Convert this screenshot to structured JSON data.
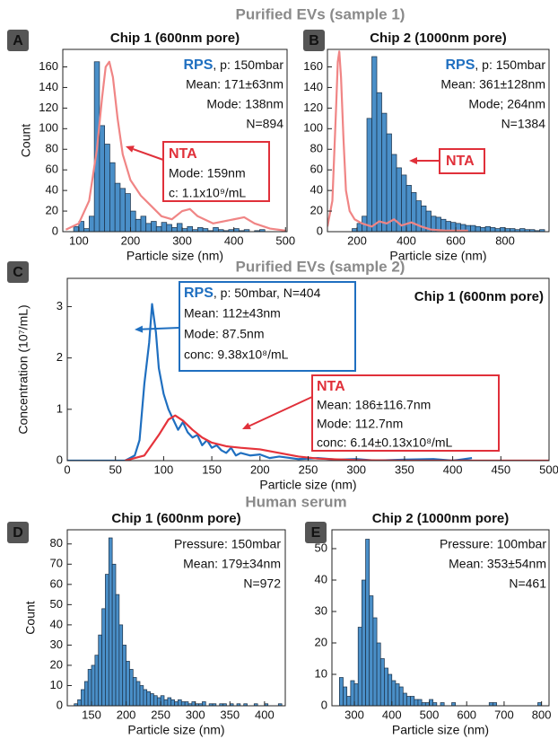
{
  "section_titles": [
    "Purified EVs (sample 1)",
    "Purified EVs (sample 2)",
    "Human serum"
  ],
  "chart_data": [
    {
      "type": "histogram",
      "panel": "A",
      "title": "Chip 1 (600nm pore)",
      "xlabel": "Particle size (nm)",
      "ylabel": "Count",
      "bins": [
        90,
        100,
        110,
        120,
        130,
        140,
        150,
        160,
        170,
        180,
        190,
        200,
        210,
        220,
        230,
        240,
        250,
        260,
        270,
        280,
        290,
        300,
        310,
        320,
        330,
        340,
        350,
        360,
        370,
        380,
        390,
        400,
        410,
        420,
        430,
        440,
        450,
        460
      ],
      "counts": [
        5,
        10,
        3,
        15,
        165,
        103,
        85,
        67,
        47,
        42,
        37,
        20,
        12,
        15,
        8,
        10,
        5,
        9,
        7,
        4,
        8,
        3,
        5,
        2,
        4,
        3,
        1,
        4,
        2,
        1,
        2,
        3,
        1,
        2,
        0,
        1,
        2
      ],
      "color": "#4a8fc8",
      "lines": [
        {
          "name": "NTA",
          "color": "#f08585",
          "x": [
            75,
            100,
            120,
            135,
            145,
            152,
            159,
            166,
            175,
            185,
            200,
            220,
            240,
            260,
            280,
            300,
            315,
            330,
            360,
            400,
            420,
            440,
            470,
            500
          ],
          "values": [
            2,
            8,
            30,
            80,
            130,
            160,
            165,
            150,
            110,
            75,
            50,
            35,
            25,
            15,
            12,
            20,
            22,
            15,
            8,
            12,
            14,
            8,
            3,
            1
          ]
        }
      ],
      "xlim": [
        69,
        503
      ],
      "ylim": [
        0,
        177
      ],
      "xticks": [
        100,
        200,
        300,
        400,
        500
      ],
      "yticks": [
        0,
        20,
        40,
        60,
        80,
        100,
        120,
        140,
        160
      ],
      "annotations": [
        {
          "head": "RPS",
          "head_rest": ", p: 150mbar",
          "color": "#1f6fc0",
          "lines": [
            "Mean: 171±63nm",
            "Mode: 138nm",
            "N=894"
          ]
        },
        {
          "head": "NTA",
          "color": "#e0303a",
          "box": true,
          "lines": [
            "Mode: 159nm",
            "c: 1.1x10⁹/mL"
          ]
        }
      ]
    },
    {
      "type": "histogram",
      "panel": "B",
      "title": "Chip 2 (1000nm pore)",
      "xlabel": "Particle size (nm)",
      "bins": [
        180,
        200,
        220,
        240,
        260,
        280,
        300,
        320,
        340,
        360,
        380,
        400,
        420,
        440,
        460,
        480,
        500,
        520,
        540,
        560,
        580,
        600,
        620,
        640,
        660,
        680,
        700,
        720,
        740,
        760,
        780,
        800,
        820,
        840,
        860,
        880,
        900,
        920,
        940,
        960
      ],
      "counts": [
        3,
        8,
        15,
        110,
        170,
        135,
        115,
        95,
        75,
        62,
        55,
        45,
        38,
        30,
        25,
        20,
        15,
        14,
        12,
        10,
        9,
        8,
        7,
        6,
        6,
        5,
        4,
        5,
        4,
        3,
        4,
        3,
        3,
        2,
        3,
        2,
        2,
        1,
        2
      ],
      "color": "#4a8fc8",
      "lines": [
        {
          "name": "NTA",
          "color": "#f08585",
          "x": [
            80,
            100,
            115,
            122,
            128,
            135,
            145,
            155,
            170,
            190,
            220,
            260,
            290,
            320,
            350,
            380,
            420,
            460,
            500,
            560,
            650
          ],
          "values": [
            5,
            30,
            120,
            165,
            175,
            150,
            90,
            40,
            20,
            12,
            8,
            5,
            10,
            8,
            12,
            6,
            9,
            5,
            2,
            1,
            1
          ]
        }
      ],
      "xlim": [
        80,
        978
      ],
      "ylim": [
        0,
        177
      ],
      "xticks": [
        200,
        400,
        600,
        800
      ],
      "yticks": [
        0,
        20,
        40,
        60,
        80,
        100,
        120,
        140,
        160
      ],
      "annotations": [
        {
          "head": "RPS",
          "head_rest": ", p: 150mbar",
          "color": "#1f6fc0",
          "lines": [
            "Mean: 361±128nm",
            "Mode; 264nm",
            "N=1384"
          ]
        },
        {
          "head": "NTA",
          "color": "#e0303a",
          "box": true,
          "lines": []
        }
      ]
    },
    {
      "type": "line",
      "panel": "C",
      "title": "Chip 1 (600nm pore)",
      "xlabel": "Particle size (nm)",
      "ylabel": "Concentration (10⁷/mL)",
      "series": [
        {
          "name": "RPS",
          "color": "#1f6fc0",
          "x": [
            0,
            20,
            40,
            60,
            70,
            75,
            80,
            85,
            88,
            92,
            95,
            100,
            105,
            110,
            115,
            120,
            125,
            130,
            135,
            140,
            145,
            150,
            155,
            160,
            165,
            170,
            175,
            180,
            190,
            200,
            210,
            220,
            240,
            260,
            280,
            300,
            320,
            350,
            380,
            400,
            420
          ],
          "values": [
            0,
            0,
            0,
            0,
            0.1,
            0.4,
            1.5,
            2.3,
            3.05,
            2.5,
            1.8,
            1.3,
            1.0,
            0.8,
            0.6,
            0.75,
            0.55,
            0.45,
            0.5,
            0.3,
            0.4,
            0.25,
            0.3,
            0.2,
            0.15,
            0.25,
            0.1,
            0.15,
            0.1,
            0.12,
            0.05,
            0.08,
            0.03,
            0.05,
            0.02,
            0.03,
            0,
            0.02,
            0.03,
            0,
            0.05
          ]
        },
        {
          "name": "NTA",
          "color": "#e5333b",
          "x": [
            60,
            80,
            95,
            105,
            112,
            120,
            130,
            140,
            150,
            165,
            180,
            200,
            220,
            240,
            260,
            300,
            350,
            500
          ],
          "values": [
            0,
            0.1,
            0.5,
            0.8,
            0.88,
            0.78,
            0.6,
            0.45,
            0.35,
            0.28,
            0.25,
            0.22,
            0.15,
            0.08,
            0.04,
            0.01,
            0,
            0
          ]
        }
      ],
      "xlim": [
        0,
        500
      ],
      "ylim": [
        0,
        3.55
      ],
      "xticks": [
        0,
        50,
        100,
        150,
        200,
        250,
        300,
        350,
        400,
        450,
        500
      ],
      "yticks": [
        0,
        1,
        2,
        3
      ],
      "annotations": [
        {
          "head": "RPS",
          "head_rest": ", p: 50mbar, N=404",
          "color": "#1f6fc0",
          "box": true,
          "lines": [
            "Mean: 112±43nm",
            "Mode: 87.5nm",
            "conc: 9.38x10⁸/mL"
          ]
        },
        {
          "head": "NTA",
          "color": "#e0303a",
          "box": true,
          "lines": [
            "Mean: 186±116.7nm",
            "Mode: 112.7nm",
            "conc: 6.14±0.13x10⁸/mL"
          ]
        }
      ]
    },
    {
      "type": "histogram",
      "panel": "D",
      "title": "Chip 1 (600nm pore)",
      "xlabel": "Particle size (nm)",
      "ylabel": "Count",
      "bins": [
        125,
        130,
        135,
        140,
        145,
        150,
        155,
        160,
        165,
        170,
        175,
        180,
        185,
        190,
        195,
        200,
        205,
        210,
        215,
        220,
        225,
        230,
        235,
        240,
        245,
        250,
        255,
        260,
        265,
        270,
        275,
        280,
        285,
        290,
        295,
        300,
        305,
        310,
        315,
        320,
        325,
        330,
        335,
        340,
        345,
        350,
        355,
        360,
        365,
        370,
        375,
        380,
        385,
        390,
        395,
        400,
        405,
        410,
        415,
        420,
        425
      ],
      "counts": [
        1,
        3,
        8,
        12,
        18,
        20,
        25,
        35,
        48,
        65,
        83,
        70,
        55,
        40,
        30,
        22,
        18,
        14,
        12,
        10,
        8,
        7,
        6,
        5,
        4,
        5,
        3,
        4,
        3,
        2,
        3,
        2,
        2,
        1,
        2,
        1,
        1,
        2,
        0,
        1,
        1,
        0,
        1,
        1,
        0,
        1,
        0,
        1,
        0,
        1,
        0,
        0,
        1,
        0,
        0,
        1,
        0,
        0,
        0,
        1
      ],
      "color": "#4a8fc8",
      "xlim": [
        115,
        430
      ],
      "ylim": [
        0,
        87
      ],
      "xticks": [
        150,
        200,
        250,
        300,
        350,
        400
      ],
      "yticks": [
        0,
        10,
        20,
        30,
        40,
        50,
        60,
        70,
        80
      ],
      "annotations": [
        {
          "lines": [
            "Pressure: 150mbar",
            "Mean: 179±34nm",
            "N=972"
          ]
        }
      ]
    },
    {
      "type": "histogram",
      "panel": "E",
      "title": "Chip 2 (1000nm pore)",
      "xlabel": "Particle size (nm)",
      "bins": [
        260,
        270,
        280,
        290,
        300,
        310,
        320,
        330,
        340,
        350,
        360,
        370,
        380,
        390,
        400,
        410,
        420,
        430,
        440,
        450,
        460,
        470,
        480,
        490,
        500,
        510,
        520,
        530,
        540,
        550,
        560,
        570,
        580,
        590,
        600,
        610,
        620,
        630,
        640,
        650,
        660,
        670,
        680,
        690,
        700,
        710,
        720,
        730,
        740,
        750,
        760,
        770,
        780,
        790,
        800,
        810
      ],
      "counts": [
        9,
        6,
        3,
        8,
        7,
        25,
        40,
        53,
        35,
        28,
        20,
        15,
        12,
        10,
        8,
        7,
        6,
        4,
        3,
        3,
        2,
        2,
        1,
        1,
        2,
        1,
        0,
        1,
        0,
        0,
        1,
        0,
        0,
        0,
        0,
        0,
        0,
        0,
        0,
        0,
        1,
        1,
        0,
        0,
        0,
        0,
        0,
        0,
        0,
        0,
        0,
        0,
        0,
        1,
        0
      ],
      "color": "#4a8fc8",
      "xlim": [
        240,
        820
      ],
      "ylim": [
        0,
        56
      ],
      "xticks": [
        300,
        400,
        500,
        600,
        700,
        800
      ],
      "yticks": [
        0,
        10,
        20,
        30,
        40,
        50
      ],
      "annotations": [
        {
          "lines": [
            "Pressure: 100mbar",
            "Mean: 353±54nm",
            "N=461"
          ]
        }
      ]
    }
  ]
}
